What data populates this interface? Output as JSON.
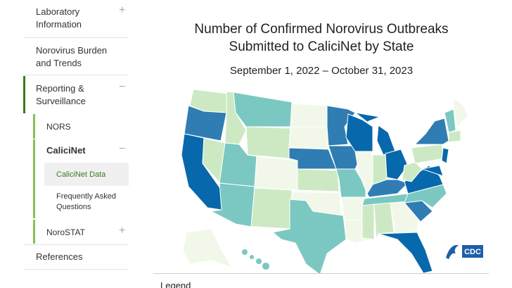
{
  "sidebar": {
    "items": [
      {
        "label": "Laboratory Information"
      },
      {
        "label": "Norovirus Burden and Trends"
      },
      {
        "label": "Reporting & Surveillance"
      },
      {
        "label": "NORS"
      },
      {
        "label": "CaliciNet"
      },
      {
        "label": "CaliciNet Data"
      },
      {
        "label": "Frequently Asked Questions"
      },
      {
        "label": "NoroSTAT"
      },
      {
        "label": "References"
      }
    ]
  },
  "main": {
    "title_line1": "Number of Confirmed Norovirus Outbreaks",
    "title_line2": "Submitted to CaliciNet by State",
    "subtitle": "September 1, 2022 – October 31, 2023",
    "logo_text": "CDC",
    "legend_heading": "Legend"
  }
}
